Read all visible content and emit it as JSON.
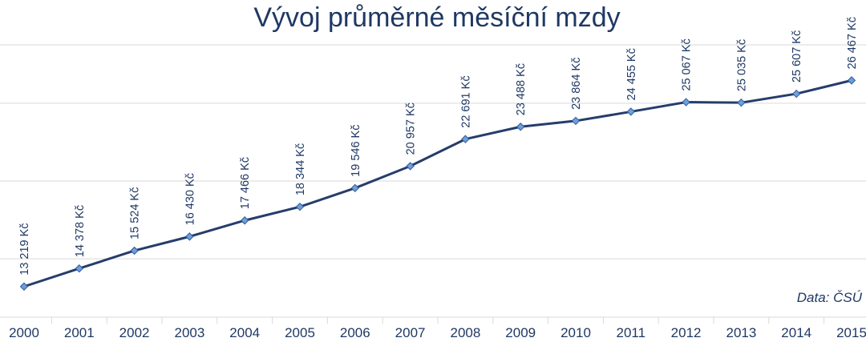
{
  "chart_data": {
    "type": "line",
    "title": "Vývoj průměrné měsíční mzdy",
    "source": "Data: ČSÚ",
    "categories": [
      "2000",
      "2001",
      "2002",
      "2003",
      "2004",
      "2005",
      "2006",
      "2007",
      "2008",
      "2009",
      "2010",
      "2011",
      "2012",
      "2013",
      "2014",
      "2015"
    ],
    "series": [
      {
        "values": [
          13219,
          14378,
          15524,
          16430,
          17466,
          18344,
          19546,
          20957,
          22691,
          23488,
          23864,
          24455,
          25067,
          25035,
          25607,
          26467
        ],
        "labels": [
          "13 219 Kč",
          "14 378 Kč",
          "15 524 Kč",
          "16 430 Kč",
          "17 466 Kč",
          "18 344 Kč",
          "19 546 Kč",
          "20 957 Kč",
          "22 691 Kč",
          "23 488 Kč",
          "23 864 Kč",
          "24 455 Kč",
          "25 067 Kč",
          "25 035 Kč",
          "25 607 Kč",
          "26 467 Kč"
        ],
        "color": "#253d6b",
        "marker_color": "#6f9fd8"
      }
    ],
    "ylim": [
      11250,
      28750
    ],
    "gridlines": [
      15000,
      20000,
      25000
    ],
    "grid": true,
    "legend": "none",
    "xlabel": "",
    "ylabel": ""
  }
}
